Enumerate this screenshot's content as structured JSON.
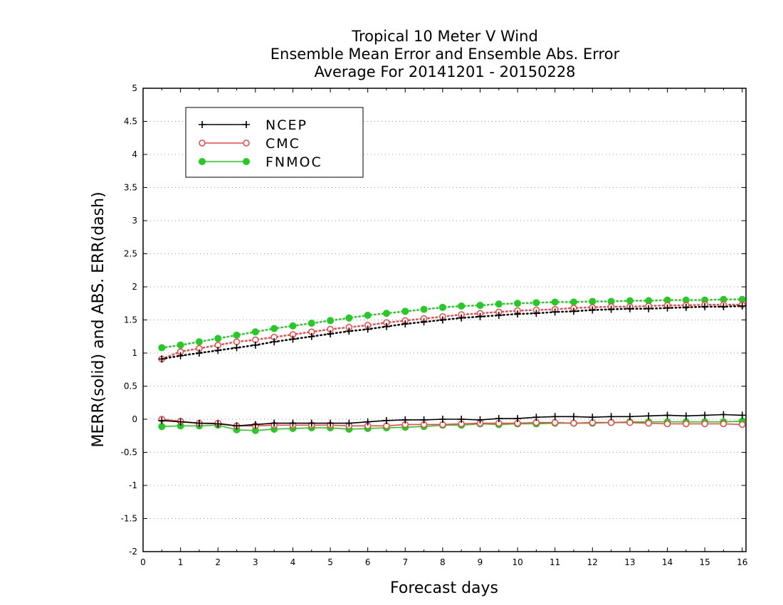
{
  "chart_data": {
    "type": "line",
    "title_lines": [
      "Tropical 10 Meter V Wind",
      "Ensemble Mean Error and Ensemble Abs. Error",
      "Average For 20141201 - 20150228"
    ],
    "xlabel": "Forecast days",
    "ylabel": "MERR(solid) and ABS. ERR(dash)",
    "xlim": [
      0,
      16.1
    ],
    "ylim": [
      -2,
      5
    ],
    "x_ticks": [
      "0",
      "1",
      "2",
      "3",
      "4",
      "5",
      "6",
      "7",
      "8",
      "9",
      "10",
      "11",
      "12",
      "13",
      "14",
      "15",
      "16"
    ],
    "y_ticks": [
      "5",
      "4.5",
      "4",
      "3.5",
      "3",
      "2.5",
      "2",
      "1.5",
      "1",
      "0.5",
      "0",
      "-0.5",
      "-1",
      "-1.5",
      "-2"
    ],
    "y_tick_values": [
      5,
      4.5,
      4,
      3.5,
      3,
      2.5,
      2,
      1.5,
      1,
      0.5,
      0,
      -0.5,
      -1,
      -1.5,
      -2
    ],
    "grid": "horizontal-dotted",
    "legend_position": "top-left",
    "x": [
      0.5,
      1,
      1.5,
      2,
      2.5,
      3,
      3.5,
      4,
      4.5,
      5,
      5.5,
      6,
      6.5,
      7,
      7.5,
      8,
      8.5,
      9,
      9.5,
      10,
      10.5,
      11,
      11.5,
      12,
      12.5,
      13,
      13.5,
      14,
      14.5,
      15,
      15.5,
      16
    ],
    "series": [
      {
        "name": "NCEP",
        "color": "#000000",
        "marker": "plus",
        "mean_error": [
          -0.02,
          -0.04,
          -0.06,
          -0.07,
          -0.1,
          -0.08,
          -0.06,
          -0.06,
          -0.06,
          -0.06,
          -0.06,
          -0.04,
          -0.02,
          -0.01,
          -0.01,
          0.0,
          0.0,
          -0.01,
          0.01,
          0.01,
          0.03,
          0.04,
          0.04,
          0.03,
          0.04,
          0.04,
          0.05,
          0.06,
          0.05,
          0.06,
          0.07,
          0.06
        ],
        "abs_error": [
          0.91,
          0.96,
          1.0,
          1.04,
          1.08,
          1.12,
          1.17,
          1.21,
          1.25,
          1.29,
          1.33,
          1.36,
          1.4,
          1.44,
          1.47,
          1.5,
          1.53,
          1.55,
          1.57,
          1.59,
          1.6,
          1.62,
          1.63,
          1.65,
          1.66,
          1.67,
          1.67,
          1.68,
          1.69,
          1.7,
          1.7,
          1.71
        ]
      },
      {
        "name": "CMC",
        "color": "#ff4040",
        "marker": "open-circle",
        "mean_error": [
          0.0,
          -0.03,
          -0.06,
          -0.06,
          -0.1,
          -0.1,
          -0.09,
          -0.09,
          -0.09,
          -0.09,
          -0.1,
          -0.1,
          -0.1,
          -0.08,
          -0.08,
          -0.08,
          -0.07,
          -0.06,
          -0.06,
          -0.06,
          -0.05,
          -0.05,
          -0.06,
          -0.05,
          -0.05,
          -0.05,
          -0.06,
          -0.07,
          -0.07,
          -0.07,
          -0.07,
          -0.08
        ],
        "abs_error": [
          0.91,
          1.02,
          1.07,
          1.12,
          1.17,
          1.2,
          1.24,
          1.28,
          1.32,
          1.36,
          1.39,
          1.42,
          1.46,
          1.49,
          1.52,
          1.55,
          1.58,
          1.6,
          1.62,
          1.64,
          1.65,
          1.66,
          1.68,
          1.69,
          1.7,
          1.7,
          1.71,
          1.72,
          1.72,
          1.73,
          1.73,
          1.73
        ]
      },
      {
        "name": "FNMOC",
        "color": "#22cc22",
        "marker": "filled-circle",
        "mean_error": [
          -0.11,
          -0.1,
          -0.1,
          -0.09,
          -0.16,
          -0.17,
          -0.15,
          -0.14,
          -0.13,
          -0.13,
          -0.15,
          -0.14,
          -0.13,
          -0.12,
          -0.11,
          -0.09,
          -0.09,
          -0.07,
          -0.08,
          -0.07,
          -0.07,
          -0.06,
          -0.06,
          -0.06,
          -0.05,
          -0.04,
          -0.04,
          -0.04,
          -0.04,
          -0.04,
          -0.04,
          -0.03
        ],
        "abs_error": [
          1.08,
          1.12,
          1.17,
          1.22,
          1.27,
          1.32,
          1.37,
          1.41,
          1.45,
          1.49,
          1.53,
          1.57,
          1.6,
          1.63,
          1.66,
          1.69,
          1.71,
          1.72,
          1.74,
          1.75,
          1.76,
          1.77,
          1.77,
          1.78,
          1.78,
          1.79,
          1.79,
          1.8,
          1.8,
          1.8,
          1.81,
          1.81
        ]
      }
    ]
  }
}
